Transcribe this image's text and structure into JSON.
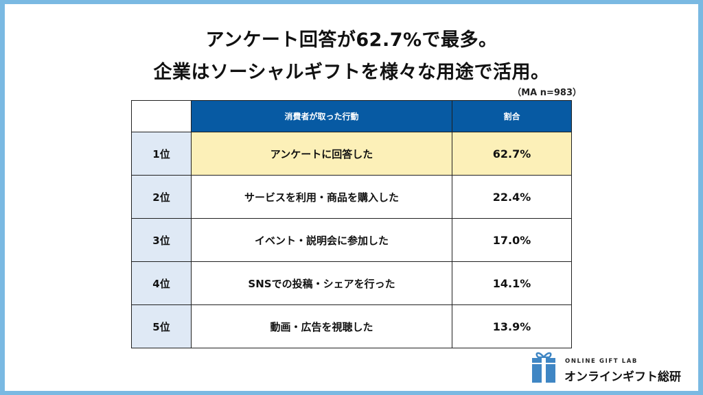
{
  "title": {
    "line1": "アンケート回答が62.7%で最多。",
    "line2": "企業はソーシャルギフトを様々な用途で活用。"
  },
  "note": "（MA n=983）",
  "colors": {
    "header_bg": "#075aa3",
    "rank_bg": "#dfe9f5",
    "highlight_bg": "#fcf0b8",
    "frame": "#7ab9e2"
  },
  "chart_data": {
    "type": "table",
    "columns": [
      "",
      "消費者が取った行動",
      "割合"
    ],
    "rows": [
      {
        "rank": "1位",
        "action": "アンケートに回答した",
        "value_label": "62.7%",
        "value": 62.7
      },
      {
        "rank": "2位",
        "action": "サービスを利用・商品を購入した",
        "value_label": "22.4%",
        "value": 22.4
      },
      {
        "rank": "3位",
        "action": "イベント・説明会に参加した",
        "value_label": "17.0%",
        "value": 17.0
      },
      {
        "rank": "4位",
        "action": "SNSでの投稿・シェアを行った",
        "value_label": "14.1%",
        "value": 14.1
      },
      {
        "rank": "5位",
        "action": "動画・広告を視聴した",
        "value_label": "13.9%",
        "value": 13.9
      }
    ],
    "highlight_row": 0
  },
  "logo": {
    "small": "ONLINE GIFT LAB",
    "name": "オンラインギフト総研",
    "icon": "gift-box-icon"
  }
}
